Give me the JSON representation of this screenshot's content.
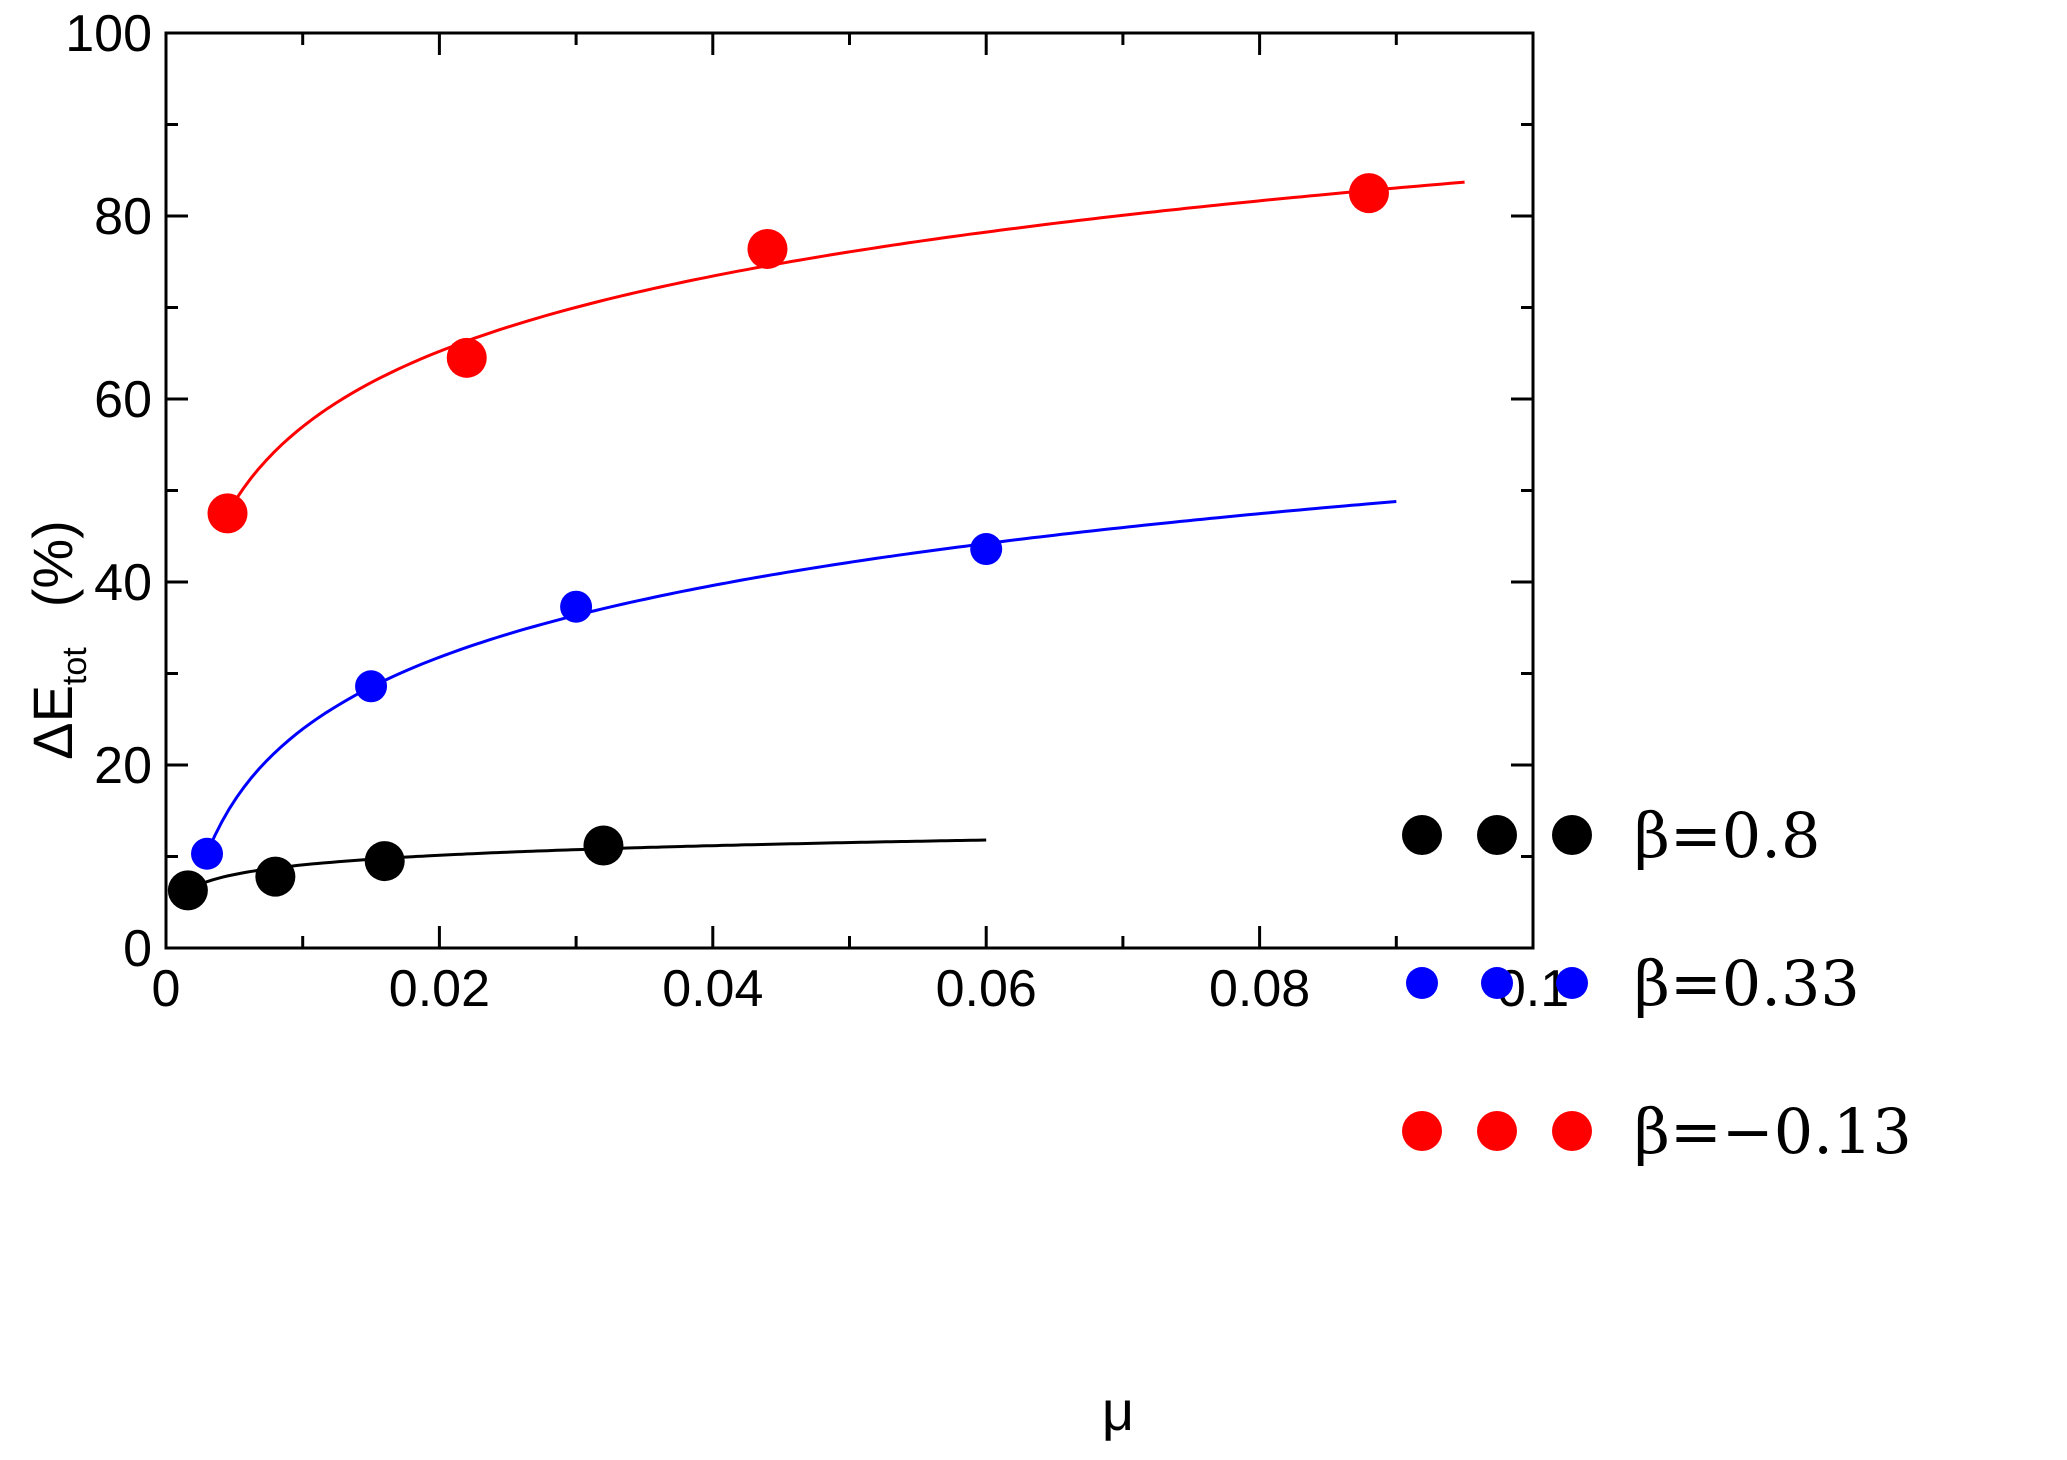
{
  "chart_data": {
    "type": "scatter",
    "xlabel": "μ",
    "ylabel": {
      "prefix": "ΔE",
      "subscript": "tot",
      "unit": "(%)"
    },
    "xlim": [
      0,
      0.1
    ],
    "ylim": [
      0,
      100
    ],
    "x_ticks": [
      0,
      0.02,
      0.04,
      0.06,
      0.08,
      0.1
    ],
    "x_tick_labels": [
      "0",
      "0.02",
      "0.04",
      "0.06",
      "0.08",
      "0.1"
    ],
    "y_ticks": [
      0,
      20,
      40,
      60,
      80,
      100
    ],
    "y_tick_labels": [
      "0",
      "20",
      "40",
      "60",
      "80",
      "100"
    ],
    "x_minor_ticks": [
      0.01,
      0.03,
      0.05,
      0.07,
      0.09
    ],
    "y_minor_ticks": [
      10,
      30,
      50,
      70,
      90
    ],
    "grid": false,
    "legend_position": "right",
    "series": [
      {
        "name": "β=0.8",
        "color": "#000000",
        "points": [
          [
            0.0016,
            6.3
          ],
          [
            0.008,
            7.8
          ],
          [
            0.016,
            9.5
          ],
          [
            0.032,
            11.2
          ]
        ],
        "fit": {
          "x_start": 0.0016,
          "x_end": 0.06,
          "y_start": 6.3,
          "y_end": 11.8
        }
      },
      {
        "name": "β=0.33",
        "color": "#0000ff",
        "points": [
          [
            0.003,
            10.3
          ],
          [
            0.015,
            28.6
          ],
          [
            0.03,
            37.3
          ],
          [
            0.06,
            43.6
          ]
        ],
        "fit": {
          "x_start": 0.003,
          "x_end": 0.09,
          "y_start": 10.3,
          "y_end": 48.8
        }
      },
      {
        "name": "β=−0.13",
        "color": "#ff0000",
        "points": [
          [
            0.0045,
            47.5
          ],
          [
            0.022,
            64.5
          ],
          [
            0.044,
            76.4
          ],
          [
            0.088,
            82.5
          ]
        ],
        "fit": {
          "x_start": 0.0045,
          "x_end": 0.095,
          "y_start": 47.5,
          "y_end": 83.7
        }
      }
    ]
  }
}
